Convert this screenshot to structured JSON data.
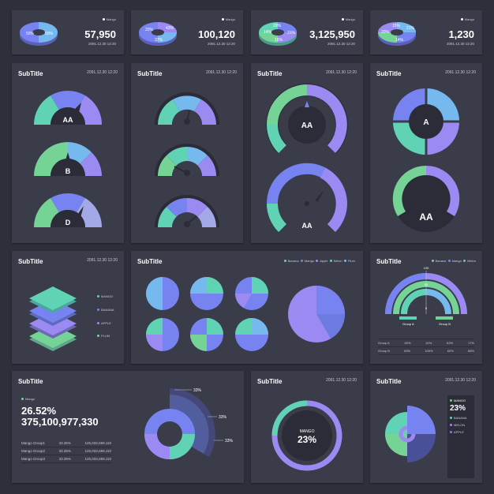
{
  "colors": {
    "violet": "#9b8af2",
    "blue": "#7683f0",
    "teal": "#5fd3b3",
    "green": "#74d395",
    "sky": "#76b9ee",
    "card": "#3b3c4a",
    "dark": "#2b2c37"
  },
  "stats": [
    {
      "legend": "Mango",
      "value": "57,950",
      "date": "2091.12.30 12:20",
      "labels": [
        "50%",
        "50%"
      ]
    },
    {
      "legend": "Mango",
      "value": "100,120",
      "date": "2091.12.30 12:20",
      "labels": [
        "20%",
        "43%",
        "37%"
      ]
    },
    {
      "legend": "Mango",
      "value": "3,125,950",
      "date": "2091.12.30 12:20",
      "labels": [
        "20%",
        "21%",
        "14%",
        "16%"
      ]
    },
    {
      "legend": "Mango",
      "value": "1,230",
      "date": "2091.12.30 12:20",
      "labels": [
        "15%",
        "21%",
        "20%",
        "14%"
      ]
    }
  ],
  "cards": {
    "gauges1": {
      "title": "SubTitle",
      "date": "2091.12.30 12:20",
      "labels": [
        "AA",
        "B",
        "D"
      ]
    },
    "gauges2": {
      "title": "SubTitle",
      "date": "2091.12.30 12:20"
    },
    "gauges3": {
      "title": "SubTitle",
      "date": "2091.12.30 12:20",
      "labels": [
        "AA",
        "AA"
      ]
    },
    "gauges4": {
      "title": "SubTitle",
      "date": "2091.12.30 12:20",
      "labels": [
        "A",
        "AA"
      ]
    },
    "layers": {
      "title": "SubTitle",
      "date": "2091.12.30 12:20",
      "legend": [
        "MANGO",
        "BANANA",
        "APPLE",
        "PLUM"
      ]
    },
    "pies": {
      "title": "SubTitle",
      "legend": [
        "Banana",
        "Mango",
        "Apple",
        "Melon",
        "Plum"
      ]
    },
    "semi": {
      "title": "SubTitle",
      "legend": [
        "Banana",
        "Mango",
        "Melon"
      ],
      "axis": [
        "100",
        "50",
        "0"
      ],
      "groups": [
        "Group A",
        "Group B"
      ],
      "table": [
        [
          "Group A",
          "60%",
          "42%",
          "83%",
          "17%"
        ],
        [
          "Group B",
          "63%",
          "100%",
          "62%",
          "68%"
        ]
      ]
    },
    "stats2": {
      "title": "SubTitle",
      "legend": "Mango",
      "percent": "26.52%",
      "total": "375,100,977,330",
      "rows": [
        [
          "Mango Group1",
          "33.35%",
          "125,033,659,110"
        ],
        [
          "Mango Group2",
          "33.35%",
          "125,033,659,110"
        ],
        [
          "Mango Group3",
          "33.35%",
          "125,033,659,110"
        ]
      ],
      "callouts": [
        "33%",
        "33%",
        "33%"
      ]
    },
    "ring": {
      "title": "SubTitle",
      "date": "2091.12.30 12:20",
      "label": "MANGO",
      "value": "23%"
    },
    "rose": {
      "title": "SubTitle",
      "date": "2091.12.30 12:20",
      "legend_top": "MANGO",
      "value": "23%",
      "legend": [
        "BANANA",
        "MELON",
        "APPLE"
      ]
    }
  }
}
